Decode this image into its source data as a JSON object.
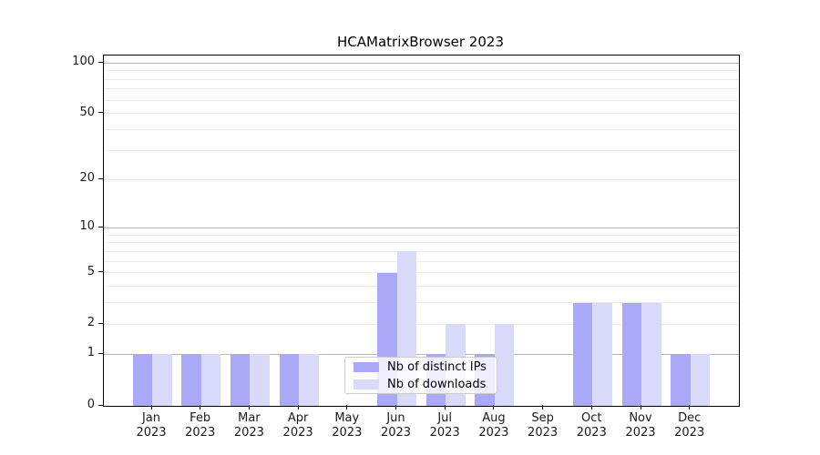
{
  "figure": {
    "title": "HCAMatrixBrowser 2023"
  },
  "chart_data": {
    "type": "bar",
    "title": "HCAMatrixBrowser 2023",
    "categories": [
      "Jan 2023",
      "Feb 2023",
      "Mar 2023",
      "Apr 2023",
      "May 2023",
      "Jun 2023",
      "Jul 2023",
      "Aug 2023",
      "Sep 2023",
      "Oct 2023",
      "Nov 2023",
      "Dec 2023"
    ],
    "series": [
      {
        "name": "Nb of distinct IPs",
        "color": "#a9a9f7",
        "values": [
          1,
          1,
          1,
          1,
          0,
          5,
          1,
          1,
          0,
          3,
          3,
          1
        ]
      },
      {
        "name": "Nb of downloads",
        "color": "#d9d9fa",
        "values": [
          1,
          1,
          1,
          1,
          0,
          7,
          2,
          2,
          0,
          3,
          3,
          1
        ]
      }
    ],
    "xlabel": "",
    "ylabel": "",
    "yscale": "log1p",
    "y_ticks": [
      0,
      1,
      2,
      5,
      10,
      20,
      50,
      100
    ],
    "y_major_gridlines": [
      1,
      10,
      100
    ],
    "ylim": [
      0,
      110
    ],
    "grid": "on",
    "legend_position": "lower center"
  },
  "colors": {
    "bar_distinct_ips": "#a9a9f7",
    "bar_downloads": "#d9d9fa",
    "grid_major": "#b9b9b9",
    "grid_minor": "#ebebeb",
    "spine": "#000000",
    "legend_border": "#cccccc"
  }
}
